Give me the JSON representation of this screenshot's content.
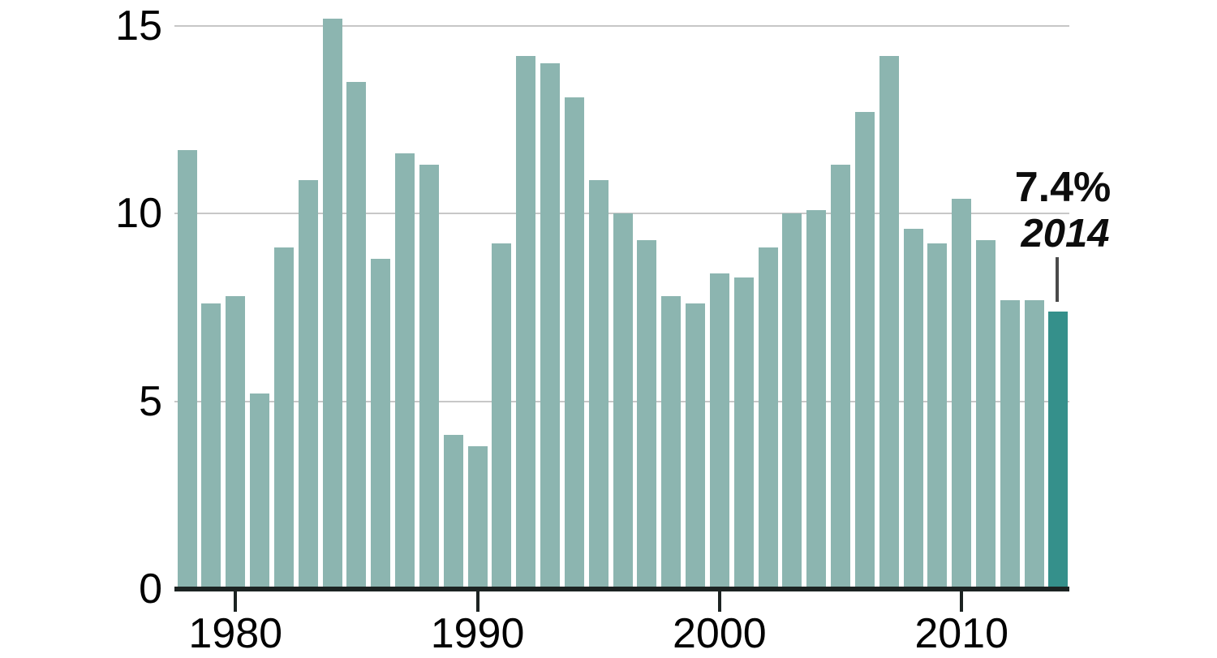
{
  "chart_data": {
    "type": "bar",
    "categories": [
      "1978",
      "1979",
      "1980",
      "1981",
      "1982",
      "1983",
      "1984",
      "1985",
      "1986",
      "1987",
      "1988",
      "1989",
      "1990",
      "1991",
      "1992",
      "1993",
      "1994",
      "1995",
      "1996",
      "1997",
      "1998",
      "1999",
      "2000",
      "2001",
      "2002",
      "2003",
      "2004",
      "2005",
      "2006",
      "2007",
      "2008",
      "2009",
      "2010",
      "2011",
      "2012",
      "2013",
      "2014"
    ],
    "values": [
      11.7,
      7.6,
      7.8,
      5.2,
      9.1,
      10.9,
      15.2,
      13.5,
      8.8,
      11.6,
      11.3,
      4.1,
      3.8,
      9.2,
      14.2,
      14.0,
      13.1,
      10.9,
      10.0,
      9.3,
      7.8,
      7.6,
      8.4,
      8.3,
      9.1,
      10.0,
      10.1,
      11.3,
      12.7,
      14.2,
      9.6,
      9.2,
      10.4,
      9.3,
      7.7,
      7.7,
      7.4
    ],
    "unit": "%",
    "ylim": [
      0,
      15.5
    ],
    "grid": "horizontal",
    "y_axis": {
      "ticks": [
        {
          "value": 0,
          "label": "0"
        },
        {
          "value": 5,
          "label": "5"
        },
        {
          "value": 10,
          "label": "10"
        },
        {
          "value": 15,
          "label": "15"
        }
      ]
    },
    "x_axis": {
      "ticks": [
        {
          "value": 1980,
          "label": "1980"
        },
        {
          "value": 1990,
          "label": "1990"
        },
        {
          "value": 2000,
          "label": "2000"
        },
        {
          "value": 2010,
          "label": "2010"
        }
      ]
    },
    "highlight": {
      "category": "2014",
      "value": 7.4,
      "value_label": "7.4%",
      "year_label": "2014"
    },
    "colors": {
      "bar": "#8CB5B0",
      "highlight_bar": "#35908B",
      "gridline": "#C7C7C7",
      "baseline": "#1C2322",
      "tick": "#1C2322",
      "text": "#000000",
      "callout_line": "#4A4A4A"
    },
    "legend": "none"
  }
}
